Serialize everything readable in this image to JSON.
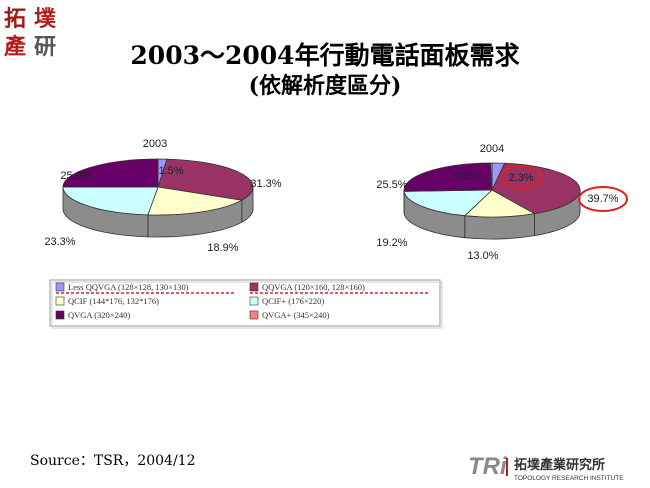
{
  "header": {
    "logo": {
      "chars": [
        "拓",
        "墣",
        "產",
        "研"
      ],
      "colors": [
        "#9b1b1b",
        "#b31c1c",
        "#b31c1c",
        "#555555"
      ]
    },
    "title_line1": "2003～2004年行動電話面板需求",
    "title_line2": "(依解析度區分)"
  },
  "chart_data": [
    {
      "type": "pie",
      "title": "2003",
      "categories": [
        "Less QQVGA",
        "QQVGA",
        "QCIF",
        "QCIF+",
        "QVGA",
        "QVGA+"
      ],
      "values": [
        1.5,
        31.3,
        18.9,
        23.3,
        25.0,
        0
      ],
      "labels": [
        "1.5%",
        "31.3%",
        "18.9%",
        "23.3%",
        "25.0%",
        ""
      ]
    },
    {
      "type": "pie",
      "title": "2004",
      "categories": [
        "Less QQVGA",
        "QQVGA",
        "QCIF",
        "QCIF+",
        "QVGA",
        "QVGA+"
      ],
      "values": [
        2.3,
        39.7,
        13.0,
        19.2,
        25.5,
        0.3
      ],
      "labels": [
        "2.3%",
        "39.7%",
        "13.0%",
        "19.2%",
        "25.5%",
        "0.3%"
      ],
      "highlighted": [
        "2.3%",
        "39.7%"
      ]
    }
  ],
  "legend": {
    "items": [
      {
        "label": "Less QQVGA (128×128, 130×130)",
        "color": "#9999ff",
        "underline": true
      },
      {
        "label": "QQVGA (120×160, 128×160)",
        "color": "#993366",
        "underline": true
      },
      {
        "label": "QCIF (144*176, 132*176)",
        "color": "#ffffcc",
        "underline": false
      },
      {
        "label": "QCIF+ (176×220)",
        "color": "#ccffff",
        "underline": false
      },
      {
        "label": "QVGA (320×240)",
        "color": "#660066",
        "underline": false
      },
      {
        "label": "QVGA+ (345×240)",
        "color": "#ff8080",
        "underline": false
      }
    ]
  },
  "colors": {
    "highlight_ring": "#e02020",
    "underline": "#e02020",
    "side": "#8c8c8c"
  },
  "footer": {
    "source": "Source：TSR，2004/12",
    "logo_text": "TRi",
    "company_cn": "拓墣產業研究所",
    "company_en": "TOPOLOGY RESEARCH INSTITUTE"
  }
}
